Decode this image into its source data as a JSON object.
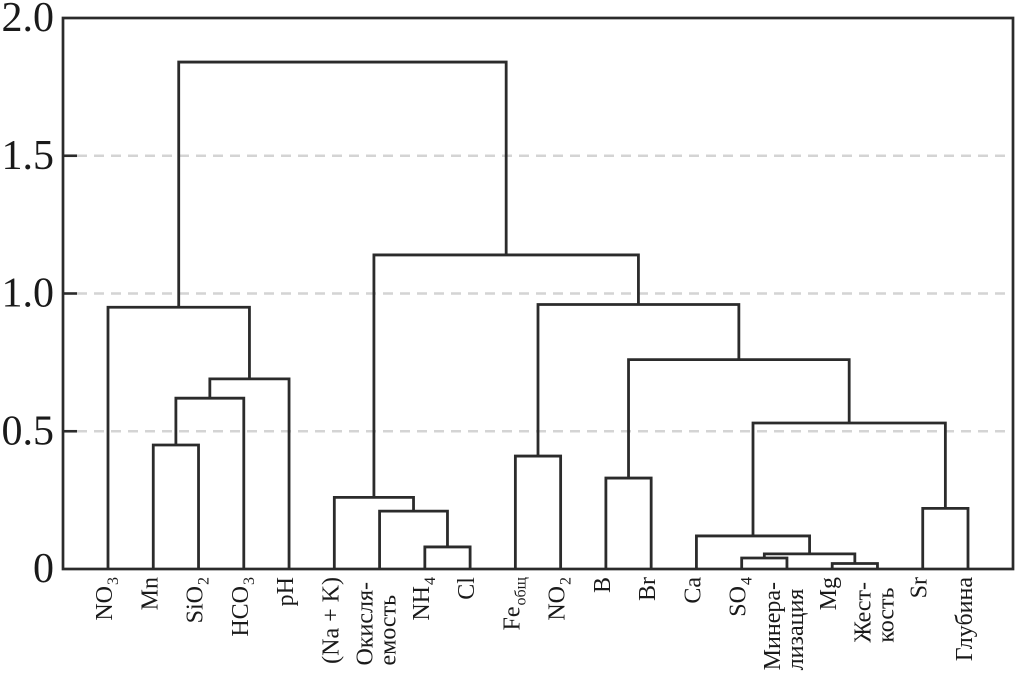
{
  "chart_data": {
    "type": "dendrogram",
    "title": "",
    "orientation": "vertical",
    "description": "Hierarchical cluster dendrogram of hydrochemical parameters",
    "y_axis": {
      "label": "",
      "range": [
        0,
        2.0
      ],
      "ticks": [
        {
          "value": 0,
          "label": "0"
        },
        {
          "value": 0.5,
          "label": "0.5"
        },
        {
          "value": 1.0,
          "label": "1.0"
        },
        {
          "value": 1.5,
          "label": "1.5"
        },
        {
          "value": 2.0,
          "label": "2.0"
        }
      ],
      "gridline_values": [
        0.5,
        1.0,
        1.5
      ],
      "grid_style": "dashed"
    },
    "leaves": [
      {
        "id": "NO3",
        "lines": [
          [
            {
              "t": "NO"
            },
            {
              "t": "3",
              "sub": true
            }
          ]
        ]
      },
      {
        "id": "Mn",
        "lines": [
          [
            {
              "t": "Mn"
            }
          ]
        ]
      },
      {
        "id": "SiO2",
        "lines": [
          [
            {
              "t": "SiO"
            },
            {
              "t": "2",
              "sub": true
            }
          ]
        ]
      },
      {
        "id": "HCO3",
        "lines": [
          [
            {
              "t": "HCO"
            },
            {
              "t": "3",
              "sub": true
            }
          ]
        ]
      },
      {
        "id": "pH",
        "lines": [
          [
            {
              "t": "pH"
            }
          ]
        ]
      },
      {
        "id": "NaK",
        "lines": [
          [
            {
              "t": "(Na + K)"
            }
          ]
        ]
      },
      {
        "id": "Oxidizability",
        "lines": [
          [
            {
              "t": "Окисля-"
            }
          ],
          [
            {
              "t": "емость"
            }
          ]
        ]
      },
      {
        "id": "NH4",
        "lines": [
          [
            {
              "t": "NH"
            },
            {
              "t": "4",
              "sub": true
            }
          ]
        ]
      },
      {
        "id": "Cl",
        "lines": [
          [
            {
              "t": "Cl"
            }
          ]
        ]
      },
      {
        "id": "Fe_total",
        "lines": [
          [
            {
              "t": "Fe"
            },
            {
              "t": "общ",
              "sub": true
            }
          ]
        ]
      },
      {
        "id": "NO2",
        "lines": [
          [
            {
              "t": "NO"
            },
            {
              "t": "2",
              "sub": true
            }
          ]
        ]
      },
      {
        "id": "B",
        "lines": [
          [
            {
              "t": "B"
            }
          ]
        ]
      },
      {
        "id": "Br",
        "lines": [
          [
            {
              "t": "Br"
            }
          ]
        ]
      },
      {
        "id": "Ca",
        "lines": [
          [
            {
              "t": "Ca"
            }
          ]
        ]
      },
      {
        "id": "SO4",
        "lines": [
          [
            {
              "t": "SO"
            },
            {
              "t": "4",
              "sub": true
            }
          ]
        ]
      },
      {
        "id": "Mineralization",
        "lines": [
          [
            {
              "t": "Минера-"
            }
          ],
          [
            {
              "t": "лизация"
            }
          ]
        ]
      },
      {
        "id": "Mg",
        "lines": [
          [
            {
              "t": "Mg"
            }
          ]
        ]
      },
      {
        "id": "Hardness",
        "lines": [
          [
            {
              "t": "Жест-"
            }
          ],
          [
            {
              "t": "кость"
            }
          ]
        ]
      },
      {
        "id": "Sr",
        "lines": [
          [
            {
              "t": "Sr"
            }
          ]
        ]
      },
      {
        "id": "Depth",
        "lines": [
          [
            {
              "t": "Глубина"
            }
          ]
        ]
      }
    ],
    "merges": [
      {
        "id": "m1",
        "a": "Mn",
        "b": "SiO2",
        "h": 0.45
      },
      {
        "id": "m2",
        "a": "m1",
        "b": "HCO3",
        "h": 0.62
      },
      {
        "id": "m3",
        "a": "m2",
        "b": "pH",
        "h": 0.69
      },
      {
        "id": "m4",
        "a": "NO3",
        "b": "m3",
        "h": 0.95
      },
      {
        "id": "m5",
        "a": "NH4",
        "b": "Cl",
        "h": 0.08
      },
      {
        "id": "m6",
        "a": "Oxidizability",
        "b": "m5",
        "h": 0.21
      },
      {
        "id": "m7",
        "a": "NaK",
        "b": "m6",
        "h": 0.26
      },
      {
        "id": "m8",
        "a": "Fe_total",
        "b": "NO2",
        "h": 0.41
      },
      {
        "id": "m9",
        "a": "B",
        "b": "Br",
        "h": 0.33
      },
      {
        "id": "m10",
        "a": "SO4",
        "b": "Mineralization",
        "h": 0.04
      },
      {
        "id": "m11",
        "a": "Mg",
        "b": "Hardness",
        "h": 0.02
      },
      {
        "id": "m12",
        "a": "m10",
        "b": "m11",
        "h": 0.055
      },
      {
        "id": "m13",
        "a": "Ca",
        "b": "m12",
        "h": 0.12
      },
      {
        "id": "m14",
        "a": "Sr",
        "b": "Depth",
        "h": 0.22
      },
      {
        "id": "m15",
        "a": "m13",
        "b": "m14",
        "h": 0.53
      },
      {
        "id": "m16",
        "a": "m9",
        "b": "m15",
        "h": 0.76
      },
      {
        "id": "m17",
        "a": "m8",
        "b": "m16",
        "h": 0.96
      },
      {
        "id": "m18",
        "a": "m7",
        "b": "m17",
        "h": 1.14
      },
      {
        "id": "m19",
        "a": "m4",
        "b": "m18",
        "h": 1.84
      }
    ],
    "styles": {
      "line_color": "#2b2b2b",
      "grid_color": "#d4d4d4",
      "text_color": "#1a1a1a",
      "background": "#ffffff"
    }
  }
}
